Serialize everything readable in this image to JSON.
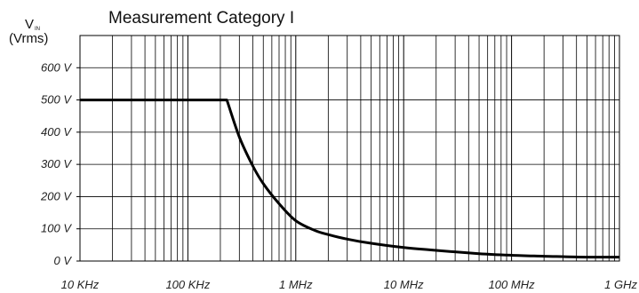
{
  "chart_data": {
    "type": "line",
    "title": "Measurement Category I",
    "ylabel": {
      "symbol": "V",
      "subscript": "IN",
      "units": "(Vrms)"
    },
    "x_scale": "log",
    "xlim": [
      10000,
      1000000000
    ],
    "ylim": [
      0,
      700
    ],
    "grid": true,
    "x_ticks": [
      {
        "value": 10000,
        "label": "10 KHz"
      },
      {
        "value": 100000,
        "label": "100 KHz"
      },
      {
        "value": 1000000,
        "label": "1 MHz"
      },
      {
        "value": 10000000,
        "label": "10 MHz"
      },
      {
        "value": 100000000,
        "label": "100 MHz"
      },
      {
        "value": 1000000000,
        "label": "1 GHz"
      }
    ],
    "y_ticks": [
      {
        "value": 0,
        "label": "0 V"
      },
      {
        "value": 100,
        "label": "100 V"
      },
      {
        "value": 200,
        "label": "200 V"
      },
      {
        "value": 300,
        "label": "300 V"
      },
      {
        "value": 400,
        "label": "400 V"
      },
      {
        "value": 500,
        "label": "500 V"
      },
      {
        "value": 600,
        "label": "600 V"
      }
    ],
    "series": [
      {
        "color": "#000000",
        "points": [
          [
            10000,
            500
          ],
          [
            230000,
            500
          ],
          [
            300000,
            385
          ],
          [
            400000,
            295
          ],
          [
            500000,
            240
          ],
          [
            700000,
            178
          ],
          [
            1000000,
            125
          ],
          [
            1500000,
            95
          ],
          [
            2000000,
            82
          ],
          [
            3000000,
            68
          ],
          [
            5000000,
            55
          ],
          [
            10000000,
            42
          ],
          [
            20000000,
            33
          ],
          [
            50000000,
            23
          ],
          [
            100000000,
            18
          ],
          [
            200000000,
            15
          ],
          [
            500000000,
            12
          ],
          [
            1000000000,
            12
          ]
        ]
      }
    ]
  }
}
